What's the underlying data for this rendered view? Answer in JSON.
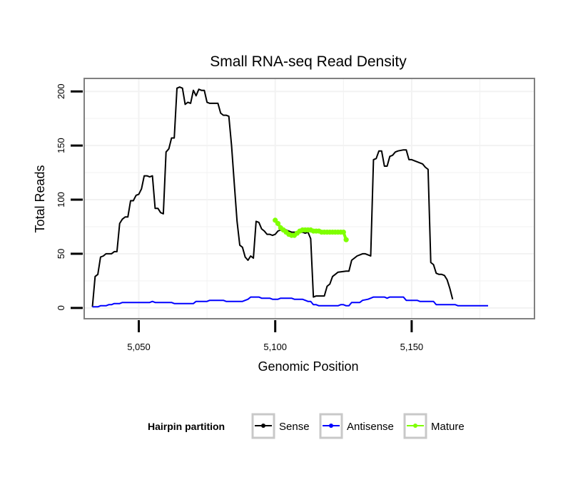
{
  "chart_data": {
    "type": "line",
    "title": "Small RNA-seq Read Density",
    "xlabel": "Genomic Position",
    "ylabel": "Total Reads",
    "xlim": [
      5030,
      5195
    ],
    "ylim": [
      -10,
      212
    ],
    "x_ticks": [
      5050,
      5100,
      5150
    ],
    "x_tick_labels": [
      "5,050",
      "5,100",
      "5,150"
    ],
    "y_ticks": [
      0,
      50,
      100,
      150,
      200
    ],
    "y_tick_labels": [
      "0",
      "50",
      "100",
      "150",
      "200"
    ],
    "grid": true,
    "legend": {
      "title": "Hairpin partition",
      "position": "bottom",
      "entries": [
        "Sense",
        "Antisense",
        "Mature"
      ]
    },
    "series": [
      {
        "name": "Sense",
        "color": "#000000",
        "points": [
          [
            5033,
            1
          ],
          [
            5034,
            29
          ],
          [
            5035,
            31
          ],
          [
            5036,
            47
          ],
          [
            5037,
            48
          ],
          [
            5038,
            50
          ],
          [
            5040,
            50
          ],
          [
            5041,
            52
          ],
          [
            5042,
            52
          ],
          [
            5043,
            78
          ],
          [
            5044,
            82
          ],
          [
            5045,
            84
          ],
          [
            5046,
            84
          ],
          [
            5047,
            99
          ],
          [
            5048,
            99
          ],
          [
            5049,
            104
          ],
          [
            5050,
            105
          ],
          [
            5051,
            110
          ],
          [
            5052,
            122
          ],
          [
            5053,
            122
          ],
          [
            5054,
            121
          ],
          [
            5055,
            122
          ],
          [
            5056,
            92
          ],
          [
            5057,
            92
          ],
          [
            5058,
            88
          ],
          [
            5059,
            87
          ],
          [
            5060,
            144
          ],
          [
            5061,
            147
          ],
          [
            5062,
            157
          ],
          [
            5063,
            157
          ],
          [
            5064,
            203
          ],
          [
            5065,
            204
          ],
          [
            5066,
            203
          ],
          [
            5067,
            188
          ],
          [
            5068,
            190
          ],
          [
            5069,
            189
          ],
          [
            5070,
            201
          ],
          [
            5071,
            196
          ],
          [
            5072,
            202
          ],
          [
            5073,
            201
          ],
          [
            5074,
            201
          ],
          [
            5075,
            190
          ],
          [
            5076,
            189
          ],
          [
            5077,
            189
          ],
          [
            5078,
            189
          ],
          [
            5079,
            189
          ],
          [
            5080,
            180
          ],
          [
            5081,
            178
          ],
          [
            5082,
            178
          ],
          [
            5083,
            177
          ],
          [
            5084,
            150
          ],
          [
            5085,
            115
          ],
          [
            5086,
            80
          ],
          [
            5087,
            58
          ],
          [
            5088,
            56
          ],
          [
            5089,
            47
          ],
          [
            5090,
            44
          ],
          [
            5091,
            48
          ],
          [
            5092,
            46
          ],
          [
            5093,
            80
          ],
          [
            5094,
            79
          ],
          [
            5095,
            73
          ],
          [
            5096,
            71
          ],
          [
            5097,
            68
          ],
          [
            5098,
            68
          ],
          [
            5099,
            67
          ],
          [
            5100,
            68
          ],
          [
            5101,
            71
          ],
          [
            5102,
            72
          ],
          [
            5104,
            72
          ],
          [
            5105,
            71
          ],
          [
            5106,
            70
          ],
          [
            5107,
            70
          ],
          [
            5110,
            70
          ],
          [
            5111,
            69
          ],
          [
            5112,
            70
          ],
          [
            5113,
            64
          ],
          [
            5114,
            10
          ],
          [
            5115,
            11
          ],
          [
            5116,
            11
          ],
          [
            5117,
            11
          ],
          [
            5118,
            11
          ],
          [
            5119,
            20
          ],
          [
            5120,
            22
          ],
          [
            5121,
            29
          ],
          [
            5122,
            31
          ],
          [
            5123,
            33
          ],
          [
            5126,
            34
          ],
          [
            5127,
            34
          ],
          [
            5128,
            44
          ],
          [
            5129,
            46
          ],
          [
            5130,
            48
          ],
          [
            5132,
            50
          ],
          [
            5133,
            50
          ],
          [
            5134,
            49
          ],
          [
            5135,
            48
          ],
          [
            5136,
            137
          ],
          [
            5137,
            138
          ],
          [
            5138,
            145
          ],
          [
            5139,
            145
          ],
          [
            5140,
            131
          ],
          [
            5141,
            131
          ],
          [
            5142,
            140
          ],
          [
            5143,
            141
          ],
          [
            5144,
            144
          ],
          [
            5145,
            145
          ],
          [
            5147,
            146
          ],
          [
            5148,
            146
          ],
          [
            5149,
            137
          ],
          [
            5150,
            137
          ],
          [
            5151,
            136
          ],
          [
            5152,
            135
          ],
          [
            5153,
            134
          ],
          [
            5154,
            133
          ],
          [
            5155,
            130
          ],
          [
            5156,
            128
          ],
          [
            5157,
            42
          ],
          [
            5158,
            40
          ],
          [
            5159,
            32
          ],
          [
            5160,
            31
          ],
          [
            5161,
            31
          ],
          [
            5162,
            30
          ],
          [
            5163,
            26
          ],
          [
            5164,
            18
          ],
          [
            5165,
            8
          ]
        ]
      },
      {
        "name": "Antisense",
        "color": "#0000ff",
        "points": [
          [
            5033,
            1
          ],
          [
            5035,
            1
          ],
          [
            5036,
            2
          ],
          [
            5038,
            2
          ],
          [
            5039,
            3
          ],
          [
            5040,
            3
          ],
          [
            5041,
            4
          ],
          [
            5043,
            4
          ],
          [
            5044,
            5
          ],
          [
            5054,
            5
          ],
          [
            5055,
            6
          ],
          [
            5056,
            5
          ],
          [
            5062,
            5
          ],
          [
            5063,
            4
          ],
          [
            5070,
            4
          ],
          [
            5071,
            6
          ],
          [
            5075,
            6
          ],
          [
            5076,
            7
          ],
          [
            5081,
            7
          ],
          [
            5082,
            6
          ],
          [
            5088,
            6
          ],
          [
            5089,
            7
          ],
          [
            5090,
            8
          ],
          [
            5091,
            10
          ],
          [
            5094,
            10
          ],
          [
            5095,
            9
          ],
          [
            5098,
            9
          ],
          [
            5099,
            8
          ],
          [
            5101,
            8
          ],
          [
            5102,
            9
          ],
          [
            5106,
            9
          ],
          [
            5107,
            8
          ],
          [
            5110,
            8
          ],
          [
            5111,
            7
          ],
          [
            5112,
            6
          ],
          [
            5113,
            6
          ],
          [
            5114,
            3
          ],
          [
            5115,
            3
          ],
          [
            5116,
            2
          ],
          [
            5123,
            2
          ],
          [
            5124,
            3
          ],
          [
            5125,
            3
          ],
          [
            5126,
            2
          ],
          [
            5127,
            2
          ],
          [
            5128,
            5
          ],
          [
            5131,
            5
          ],
          [
            5132,
            7
          ],
          [
            5134,
            8
          ],
          [
            5135,
            9
          ],
          [
            5136,
            10
          ],
          [
            5140,
            10
          ],
          [
            5141,
            9
          ],
          [
            5142,
            10
          ],
          [
            5147,
            10
          ],
          [
            5148,
            7
          ],
          [
            5152,
            7
          ],
          [
            5153,
            6
          ],
          [
            5158,
            6
          ],
          [
            5159,
            3
          ],
          [
            5166,
            3
          ],
          [
            5167,
            2
          ],
          [
            5178,
            2
          ]
        ]
      },
      {
        "name": "Mature",
        "color": "#7fff00",
        "points": [
          [
            5100,
            81
          ],
          [
            5101,
            78
          ],
          [
            5102,
            74
          ],
          [
            5103,
            72
          ],
          [
            5104,
            70
          ],
          [
            5105,
            68
          ],
          [
            5106,
            67
          ],
          [
            5107,
            67
          ],
          [
            5108,
            69
          ],
          [
            5109,
            71
          ],
          [
            5110,
            72
          ],
          [
            5111,
            72
          ],
          [
            5112,
            72
          ],
          [
            5113,
            72
          ],
          [
            5114,
            71
          ],
          [
            5115,
            71
          ],
          [
            5116,
            71
          ],
          [
            5117,
            70
          ],
          [
            5118,
            70
          ],
          [
            5119,
            70
          ],
          [
            5120,
            70
          ],
          [
            5121,
            70
          ],
          [
            5122,
            70
          ],
          [
            5123,
            70
          ],
          [
            5124,
            70
          ],
          [
            5125,
            70
          ],
          [
            5126,
            63
          ]
        ]
      }
    ]
  }
}
